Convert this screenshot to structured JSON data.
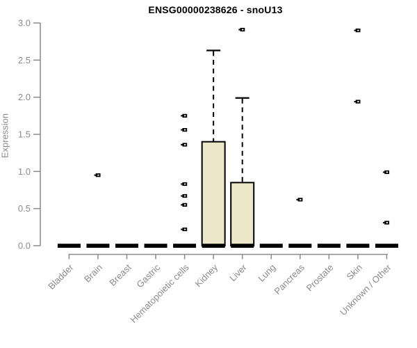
{
  "colors": {
    "background": "#FFFFFF",
    "title_text": "#000000",
    "axis": "#8A8A8A",
    "tick_text": "#8A8A8A",
    "box_fill": "#EDE7C9",
    "box_border": "#000000",
    "outlier": "#000000"
  },
  "chart_data": {
    "type": "boxplot",
    "title": "ENSG00000238626 - snoU13",
    "ylabel": "Expression",
    "xlabel": "",
    "ylim": [
      0,
      3
    ],
    "ytick_labels": [
      "0.0",
      "0.5",
      "1.0",
      "1.5",
      "2.0",
      "2.5",
      "3.0"
    ],
    "grid": false,
    "legend": "none",
    "categories": [
      "Bladder",
      "Brain",
      "Breast",
      "Gastric",
      "Hematopoietic cells",
      "Kidney",
      "Liver",
      "Lung",
      "Pancreas",
      "Prostate",
      "Skin",
      "Unknown / Other"
    ],
    "series": [
      {
        "category": "Bladder",
        "whisker_low": 0,
        "q1": 0,
        "median": 0,
        "q3": 0,
        "whisker_high": 0,
        "outliers": []
      },
      {
        "category": "Brain",
        "whisker_low": 0,
        "q1": 0,
        "median": 0,
        "q3": 0,
        "whisker_high": 0,
        "outliers": [
          0.95
        ]
      },
      {
        "category": "Breast",
        "whisker_low": 0,
        "q1": 0,
        "median": 0,
        "q3": 0,
        "whisker_high": 0,
        "outliers": []
      },
      {
        "category": "Gastric",
        "whisker_low": 0,
        "q1": 0,
        "median": 0,
        "q3": 0,
        "whisker_high": 0,
        "outliers": []
      },
      {
        "category": "Hematopoietic cells",
        "whisker_low": 0,
        "q1": 0,
        "median": 0,
        "q3": 0,
        "whisker_high": 0,
        "outliers": [
          1.75,
          1.56,
          1.36,
          0.83,
          0.67,
          0.55,
          0.22
        ]
      },
      {
        "category": "Kidney",
        "whisker_low": 0,
        "q1": 0,
        "median": 0,
        "q3": 1.4,
        "whisker_high": 2.63,
        "outliers": []
      },
      {
        "category": "Liver",
        "whisker_low": 0,
        "q1": 0,
        "median": 0,
        "q3": 0.85,
        "whisker_high": 1.99,
        "outliers": [
          2.91
        ]
      },
      {
        "category": "Lung",
        "whisker_low": 0,
        "q1": 0,
        "median": 0,
        "q3": 0,
        "whisker_high": 0,
        "outliers": []
      },
      {
        "category": "Pancreas",
        "whisker_low": 0,
        "q1": 0,
        "median": 0,
        "q3": 0,
        "whisker_high": 0,
        "outliers": [
          0.62
        ]
      },
      {
        "category": "Prostate",
        "whisker_low": 0,
        "q1": 0,
        "median": 0,
        "q3": 0,
        "whisker_high": 0,
        "outliers": []
      },
      {
        "category": "Skin",
        "whisker_low": 0,
        "q1": 0,
        "median": 0,
        "q3": 0,
        "whisker_high": 0,
        "outliers": [
          2.9,
          1.94
        ]
      },
      {
        "category": "Unknown / Other",
        "whisker_low": 0,
        "q1": 0,
        "median": 0,
        "q3": 0,
        "whisker_high": 0,
        "outliers": [
          0.99,
          0.31
        ]
      }
    ]
  }
}
